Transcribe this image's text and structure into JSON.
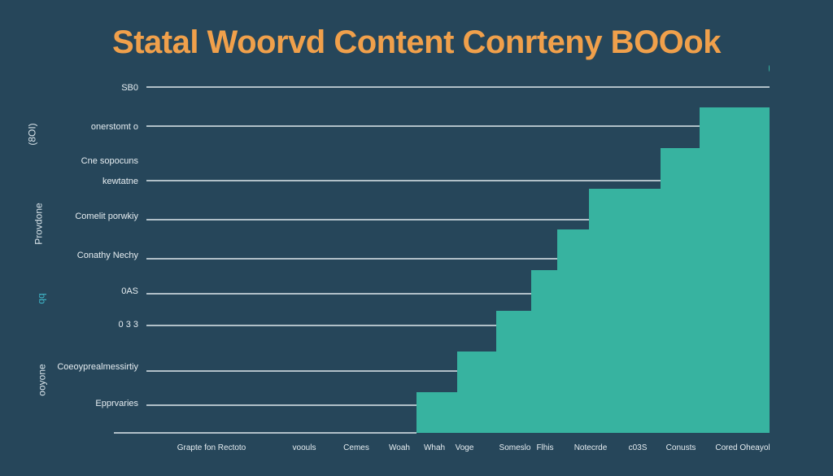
{
  "chart_data": {
    "type": "bar",
    "title": "Statal Woorvd Content Conrteny BOOok",
    "y_tick_labels": [
      "SB0",
      "onerstomt o",
      "Cne sopocuns",
      "kewtatne",
      "Comelit porwkiy",
      "Conathy Nechy",
      "0AS",
      "0 3 3",
      "Coeoyprealmessirtiy",
      "Epprvaries"
    ],
    "y_axis_titles": [
      "(8OI)",
      "Provdone",
      "qq",
      "ooyone"
    ],
    "categories": [
      "Grapte fon Rectoto",
      "voouls",
      "Cemes",
      "Woah",
      "Whah",
      "Voge",
      "Someslo",
      "Flhis",
      "Notecrde",
      "c03S",
      "Conusts",
      "Cored",
      "Oheayol"
    ],
    "values": [
      0,
      0,
      0,
      0,
      1,
      2,
      4,
      4,
      5,
      6,
      7,
      8,
      9
    ],
    "ylim": [
      0,
      9
    ],
    "grid": true,
    "colors": {
      "background": "#26465a",
      "bars": "#37b3a0",
      "grid": "#dfe8ec",
      "title": "#f0a04b",
      "text": "#e6edf1",
      "accent": "#3fb6c8"
    }
  }
}
